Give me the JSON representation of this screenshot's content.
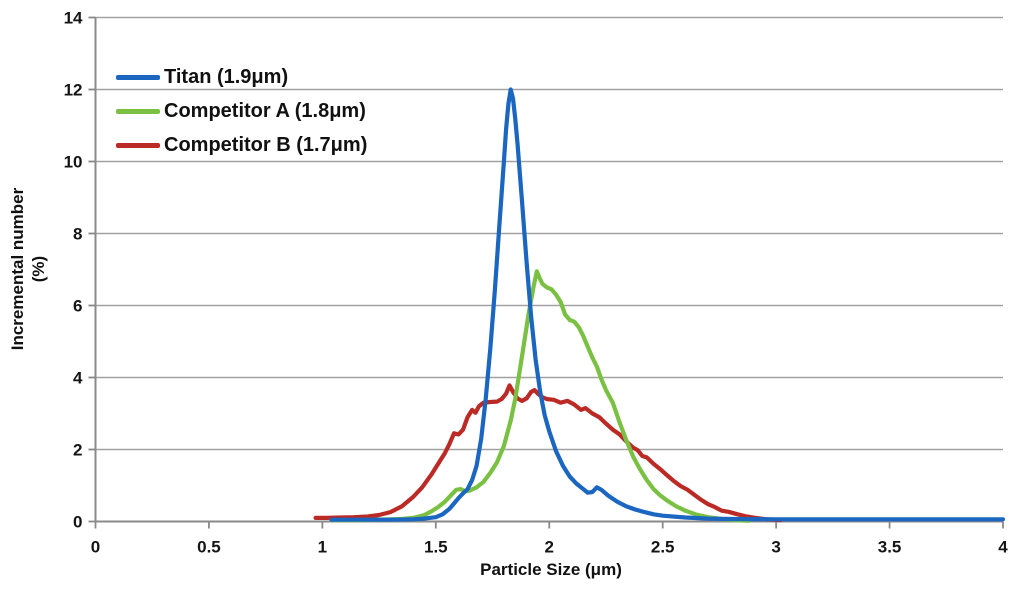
{
  "chart_data": {
    "type": "line",
    "title": "",
    "xlabel": "Particle Size (μm)",
    "ylabel": "Incremental number (%)",
    "ylabel_lines": [
      "Incremental number",
      "(%)"
    ],
    "xlim": [
      0,
      4
    ],
    "ylim": [
      0,
      14
    ],
    "xticks": [
      0,
      0.5,
      1,
      1.5,
      2,
      2.5,
      3,
      3.5,
      4
    ],
    "xtick_labels": [
      "0",
      "0.5",
      "1",
      "1.5",
      "2",
      "2.5",
      "3",
      "3.5",
      "4"
    ],
    "yticks": [
      0,
      2,
      4,
      6,
      8,
      10,
      12,
      14
    ],
    "ytick_labels": [
      "0",
      "2",
      "4",
      "6",
      "8",
      "10",
      "12",
      "14"
    ],
    "grid": "horizontal",
    "legend_position": "top-left-inside",
    "series": [
      {
        "id": "titan",
        "name": "Titan (1.9μm)",
        "color": "#1B66C0",
        "points": [
          [
            1.04,
            0.05
          ],
          [
            1.1,
            0.05
          ],
          [
            1.2,
            0.05
          ],
          [
            1.3,
            0.05
          ],
          [
            1.4,
            0.06
          ],
          [
            1.45,
            0.08
          ],
          [
            1.5,
            0.12
          ],
          [
            1.53,
            0.2
          ],
          [
            1.56,
            0.35
          ],
          [
            1.58,
            0.5
          ],
          [
            1.6,
            0.65
          ],
          [
            1.62,
            0.78
          ],
          [
            1.64,
            0.9
          ],
          [
            1.66,
            1.15
          ],
          [
            1.68,
            1.55
          ],
          [
            1.7,
            2.3
          ],
          [
            1.72,
            3.4
          ],
          [
            1.74,
            4.8
          ],
          [
            1.76,
            6.4
          ],
          [
            1.78,
            8.2
          ],
          [
            1.8,
            10.0
          ],
          [
            1.81,
            10.9
          ],
          [
            1.82,
            11.6
          ],
          [
            1.83,
            12.0
          ],
          [
            1.84,
            11.75
          ],
          [
            1.85,
            11.2
          ],
          [
            1.86,
            10.5
          ],
          [
            1.88,
            8.9
          ],
          [
            1.9,
            7.2
          ],
          [
            1.92,
            5.7
          ],
          [
            1.94,
            4.5
          ],
          [
            1.96,
            3.6
          ],
          [
            1.98,
            2.95
          ],
          [
            2.0,
            2.5
          ],
          [
            2.03,
            1.95
          ],
          [
            2.06,
            1.55
          ],
          [
            2.09,
            1.25
          ],
          [
            2.12,
            1.05
          ],
          [
            2.15,
            0.9
          ],
          [
            2.17,
            0.8
          ],
          [
            2.19,
            0.82
          ],
          [
            2.21,
            0.95
          ],
          [
            2.23,
            0.88
          ],
          [
            2.26,
            0.72
          ],
          [
            2.3,
            0.55
          ],
          [
            2.34,
            0.42
          ],
          [
            2.38,
            0.33
          ],
          [
            2.42,
            0.26
          ],
          [
            2.46,
            0.2
          ],
          [
            2.5,
            0.16
          ],
          [
            2.6,
            0.11
          ],
          [
            2.7,
            0.08
          ],
          [
            2.8,
            0.07
          ],
          [
            3.0,
            0.06
          ],
          [
            3.25,
            0.06
          ],
          [
            3.5,
            0.06
          ],
          [
            3.75,
            0.06
          ],
          [
            4.0,
            0.06
          ]
        ]
      },
      {
        "id": "competitor-a",
        "name": "Competitor A (1.8μm)",
        "color": "#7AC143",
        "points": [
          [
            1.05,
            0.04
          ],
          [
            1.15,
            0.04
          ],
          [
            1.25,
            0.05
          ],
          [
            1.35,
            0.07
          ],
          [
            1.4,
            0.1
          ],
          [
            1.45,
            0.18
          ],
          [
            1.48,
            0.28
          ],
          [
            1.51,
            0.4
          ],
          [
            1.54,
            0.55
          ],
          [
            1.57,
            0.75
          ],
          [
            1.59,
            0.88
          ],
          [
            1.61,
            0.9
          ],
          [
            1.63,
            0.84
          ],
          [
            1.65,
            0.86
          ],
          [
            1.68,
            0.95
          ],
          [
            1.71,
            1.1
          ],
          [
            1.74,
            1.35
          ],
          [
            1.77,
            1.65
          ],
          [
            1.8,
            2.1
          ],
          [
            1.83,
            2.8
          ],
          [
            1.85,
            3.4
          ],
          [
            1.87,
            4.2
          ],
          [
            1.89,
            5.0
          ],
          [
            1.91,
            5.8
          ],
          [
            1.93,
            6.5
          ],
          [
            1.945,
            6.95
          ],
          [
            1.955,
            6.8
          ],
          [
            1.97,
            6.6
          ],
          [
            1.99,
            6.5
          ],
          [
            2.01,
            6.45
          ],
          [
            2.03,
            6.3
          ],
          [
            2.05,
            6.1
          ],
          [
            2.07,
            5.75
          ],
          [
            2.09,
            5.6
          ],
          [
            2.11,
            5.55
          ],
          [
            2.13,
            5.4
          ],
          [
            2.15,
            5.15
          ],
          [
            2.17,
            4.85
          ],
          [
            2.19,
            4.55
          ],
          [
            2.21,
            4.3
          ],
          [
            2.23,
            3.95
          ],
          [
            2.25,
            3.65
          ],
          [
            2.28,
            3.3
          ],
          [
            2.31,
            2.75
          ],
          [
            2.34,
            2.25
          ],
          [
            2.37,
            1.8
          ],
          [
            2.4,
            1.45
          ],
          [
            2.43,
            1.15
          ],
          [
            2.46,
            0.9
          ],
          [
            2.49,
            0.72
          ],
          [
            2.52,
            0.58
          ],
          [
            2.56,
            0.42
          ],
          [
            2.6,
            0.3
          ],
          [
            2.65,
            0.19
          ],
          [
            2.7,
            0.12
          ],
          [
            2.76,
            0.07
          ],
          [
            2.82,
            0.04
          ],
          [
            2.88,
            0.02
          ]
        ]
      },
      {
        "id": "competitor-b",
        "name": "Competitor B (1.7μm)",
        "color": "#BB2A25",
        "points": [
          [
            0.97,
            0.1
          ],
          [
            1.02,
            0.1
          ],
          [
            1.08,
            0.11
          ],
          [
            1.14,
            0.12
          ],
          [
            1.2,
            0.14
          ],
          [
            1.25,
            0.18
          ],
          [
            1.3,
            0.26
          ],
          [
            1.35,
            0.42
          ],
          [
            1.4,
            0.68
          ],
          [
            1.44,
            0.95
          ],
          [
            1.48,
            1.3
          ],
          [
            1.51,
            1.6
          ],
          [
            1.54,
            1.9
          ],
          [
            1.56,
            2.15
          ],
          [
            1.58,
            2.45
          ],
          [
            1.6,
            2.42
          ],
          [
            1.62,
            2.55
          ],
          [
            1.64,
            2.9
          ],
          [
            1.66,
            3.1
          ],
          [
            1.675,
            3.02
          ],
          [
            1.69,
            3.2
          ],
          [
            1.71,
            3.3
          ],
          [
            1.74,
            3.32
          ],
          [
            1.77,
            3.33
          ],
          [
            1.79,
            3.4
          ],
          [
            1.81,
            3.55
          ],
          [
            1.825,
            3.78
          ],
          [
            1.84,
            3.6
          ],
          [
            1.86,
            3.42
          ],
          [
            1.88,
            3.35
          ],
          [
            1.9,
            3.42
          ],
          [
            1.92,
            3.6
          ],
          [
            1.935,
            3.65
          ],
          [
            1.95,
            3.55
          ],
          [
            1.97,
            3.45
          ],
          [
            1.99,
            3.4
          ],
          [
            2.02,
            3.38
          ],
          [
            2.05,
            3.3
          ],
          [
            2.08,
            3.35
          ],
          [
            2.11,
            3.25
          ],
          [
            2.14,
            3.1
          ],
          [
            2.16,
            3.15
          ],
          [
            2.19,
            3.0
          ],
          [
            2.22,
            2.9
          ],
          [
            2.25,
            2.72
          ],
          [
            2.28,
            2.55
          ],
          [
            2.31,
            2.42
          ],
          [
            2.34,
            2.22
          ],
          [
            2.37,
            2.05
          ],
          [
            2.39,
            1.98
          ],
          [
            2.41,
            1.82
          ],
          [
            2.43,
            1.78
          ],
          [
            2.46,
            1.6
          ],
          [
            2.49,
            1.45
          ],
          [
            2.52,
            1.28
          ],
          [
            2.55,
            1.12
          ],
          [
            2.58,
            0.98
          ],
          [
            2.61,
            0.88
          ],
          [
            2.64,
            0.74
          ],
          [
            2.67,
            0.6
          ],
          [
            2.7,
            0.48
          ],
          [
            2.73,
            0.4
          ],
          [
            2.76,
            0.3
          ],
          [
            2.79,
            0.27
          ],
          [
            2.83,
            0.2
          ],
          [
            2.87,
            0.14
          ],
          [
            2.91,
            0.1
          ],
          [
            2.96,
            0.06
          ],
          [
            3.02,
            0.04
          ]
        ]
      }
    ]
  }
}
